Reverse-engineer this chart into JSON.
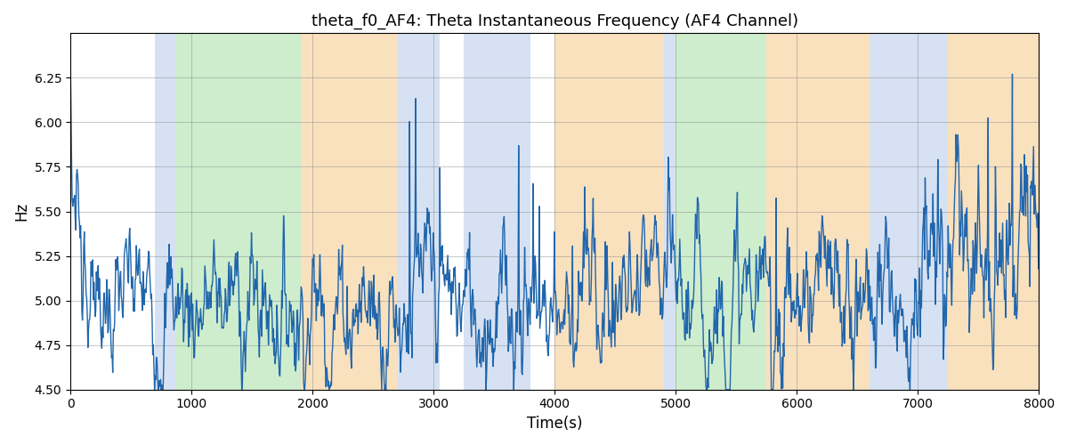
{
  "title": "theta_f0_AF4: Theta Instantaneous Frequency (AF4 Channel)",
  "xlabel": "Time(s)",
  "ylabel": "Hz",
  "xlim": [
    0,
    8000
  ],
  "ylim": [
    4.5,
    6.5
  ],
  "yticks": [
    4.5,
    4.75,
    5.0,
    5.25,
    5.5,
    5.75,
    6.0,
    6.25
  ],
  "xticks": [
    0,
    1000,
    2000,
    3000,
    4000,
    5000,
    6000,
    7000,
    8000
  ],
  "line_color": "#2166ac",
  "line_width": 1.0,
  "bg_color": "#ffffff",
  "bands": [
    {
      "start": 700,
      "end": 870,
      "color": "#aec6e8",
      "alpha": 0.5
    },
    {
      "start": 870,
      "end": 1900,
      "color": "#90d890",
      "alpha": 0.45
    },
    {
      "start": 1900,
      "end": 2700,
      "color": "#f5c98a",
      "alpha": 0.55
    },
    {
      "start": 2700,
      "end": 3050,
      "color": "#aec6e8",
      "alpha": 0.5
    },
    {
      "start": 3250,
      "end": 3800,
      "color": "#aec6e8",
      "alpha": 0.5
    },
    {
      "start": 4000,
      "end": 4900,
      "color": "#f5c98a",
      "alpha": 0.55
    },
    {
      "start": 4900,
      "end": 5000,
      "color": "#aec6e8",
      "alpha": 0.5
    },
    {
      "start": 5000,
      "end": 5750,
      "color": "#90d890",
      "alpha": 0.45
    },
    {
      "start": 5750,
      "end": 6600,
      "color": "#f5c98a",
      "alpha": 0.55
    },
    {
      "start": 6600,
      "end": 7250,
      "color": "#aec6e8",
      "alpha": 0.5
    },
    {
      "start": 7250,
      "end": 8100,
      "color": "#f5c98a",
      "alpha": 0.55
    }
  ],
  "n_points": 1600,
  "seed": 7,
  "figsize": [
    12,
    5
  ],
  "dpi": 100,
  "title_fontsize": 13
}
